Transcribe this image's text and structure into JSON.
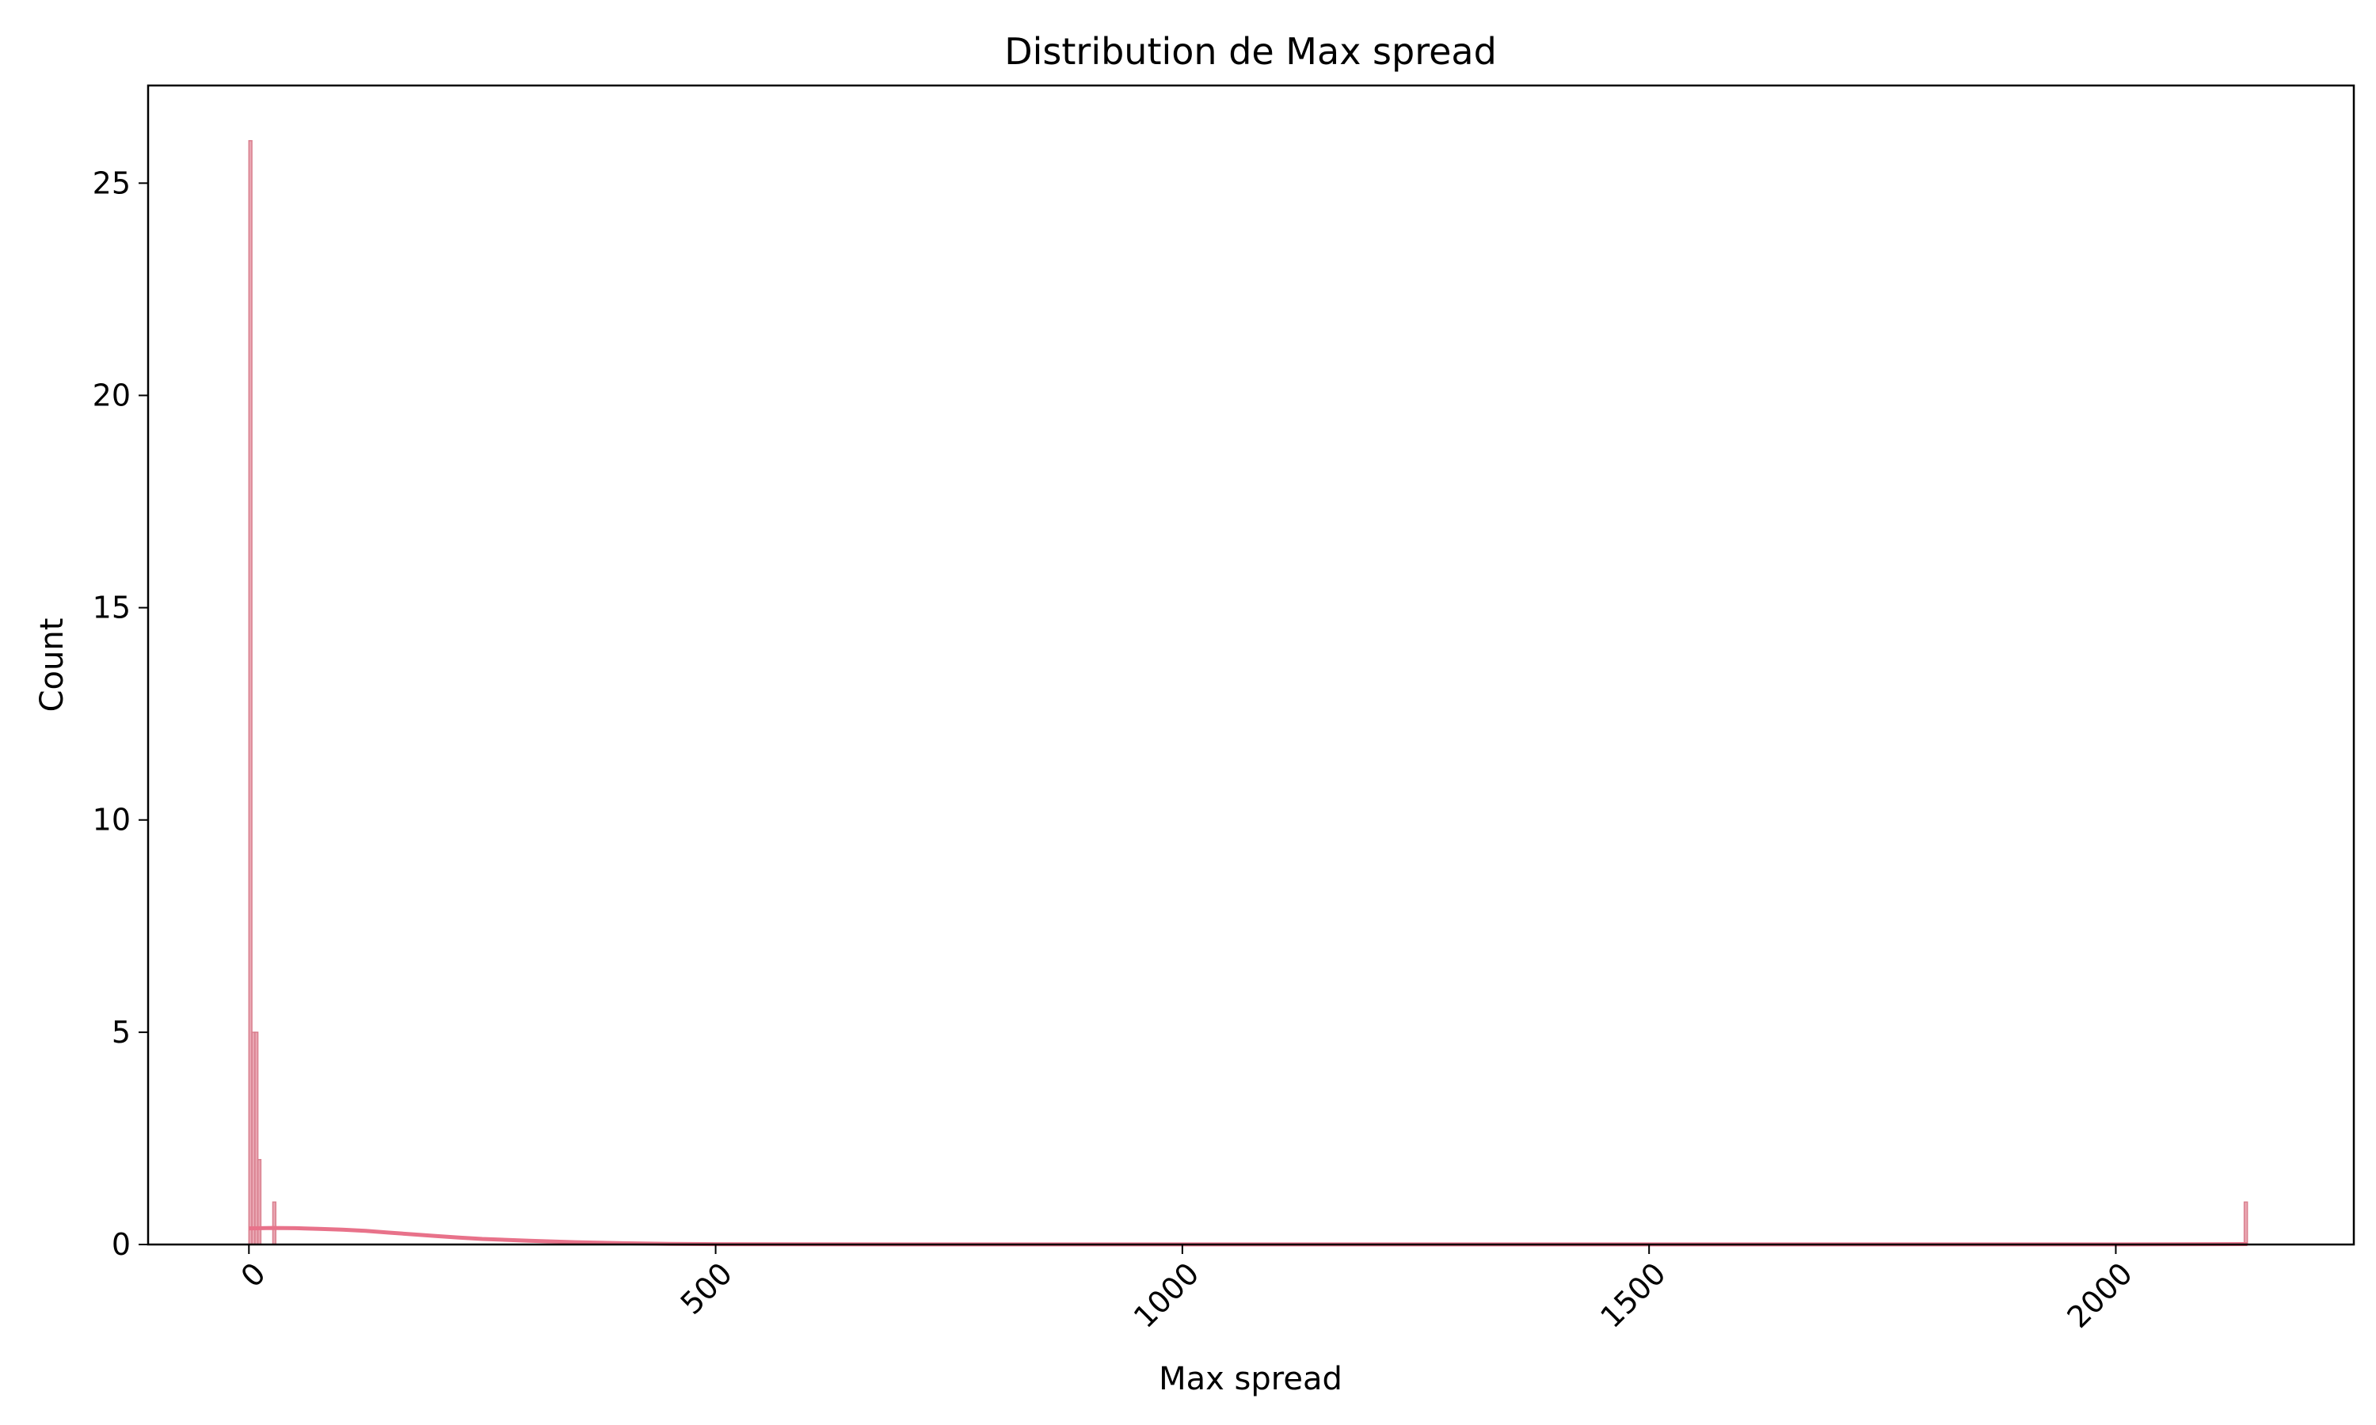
{
  "chart_data": {
    "type": "bar",
    "subtype": "histogram-with-kde",
    "title": "Distribution de Max spread",
    "xlabel": "Max spread",
    "ylabel": "Count",
    "xlim": [
      -108,
      2255
    ],
    "ylim": [
      0,
      27.3
    ],
    "xticks": [
      0,
      500,
      1000,
      1500,
      2000
    ],
    "xtick_labels": [
      "0",
      "500",
      "1000",
      "1500",
      "2000"
    ],
    "xtick_rotation": 45,
    "yticks": [
      0,
      5,
      10,
      15,
      20,
      25
    ],
    "ytick_labels": [
      "0",
      "5",
      "10",
      "15",
      "20",
      "25"
    ],
    "grid": false,
    "legend": "none",
    "colors": {
      "bar_fill": "#eaa7b3",
      "bar_edge": "#d9808f",
      "kde_line": "#e8728a"
    },
    "bins": [
      {
        "x0": 0.0,
        "x1": 3.2,
        "count": 26
      },
      {
        "x0": 3.2,
        "x1": 6.4,
        "count": 5
      },
      {
        "x0": 6.4,
        "x1": 9.6,
        "count": 5
      },
      {
        "x0": 9.6,
        "x1": 12.8,
        "count": 2
      },
      {
        "x0": 25.6,
        "x1": 28.8,
        "count": 1
      },
      {
        "x0": 2137.6,
        "x1": 2141.0,
        "count": 1
      }
    ],
    "kde": {
      "x": [
        0,
        25,
        50,
        75,
        100,
        125,
        150,
        175,
        200,
        225,
        250,
        300,
        350,
        400,
        450,
        500,
        600,
        800,
        1000,
        1500,
        2000,
        2141
      ],
      "y": [
        0.38,
        0.39,
        0.385,
        0.37,
        0.35,
        0.32,
        0.28,
        0.24,
        0.2,
        0.165,
        0.13,
        0.09,
        0.055,
        0.03,
        0.015,
        0.008,
        0.004,
        0.002,
        0.001,
        0.001,
        0.002,
        0.01
      ]
    }
  }
}
